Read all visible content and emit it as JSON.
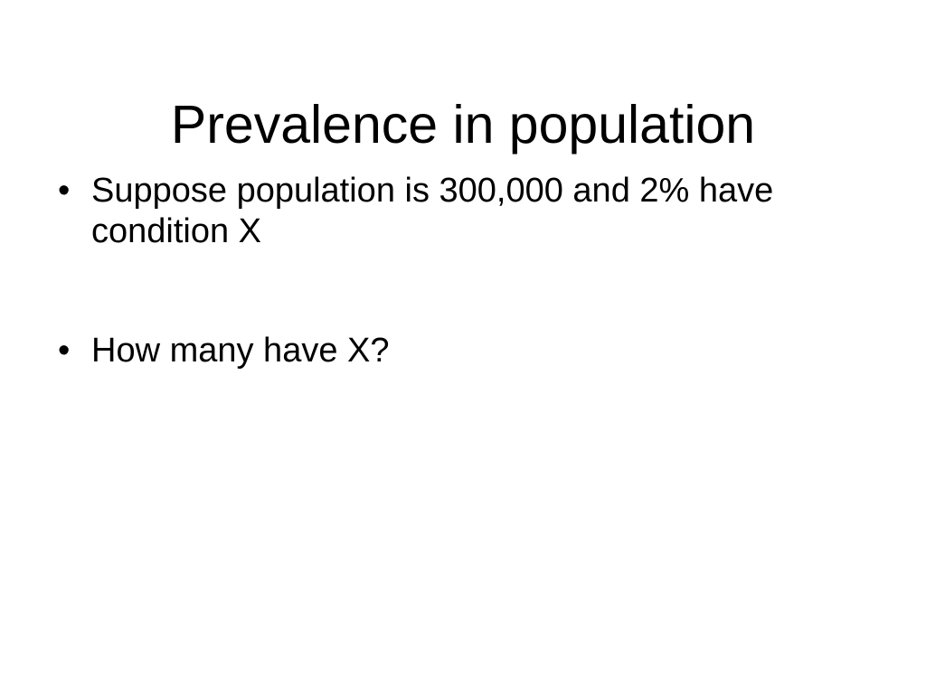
{
  "slide": {
    "title": "Prevalence in population",
    "bullet_marker": "•",
    "bullets": [
      {
        "text": "Suppose population is 300,000 and 2% have condition X"
      },
      {
        "text": "How many have X?"
      }
    ]
  }
}
